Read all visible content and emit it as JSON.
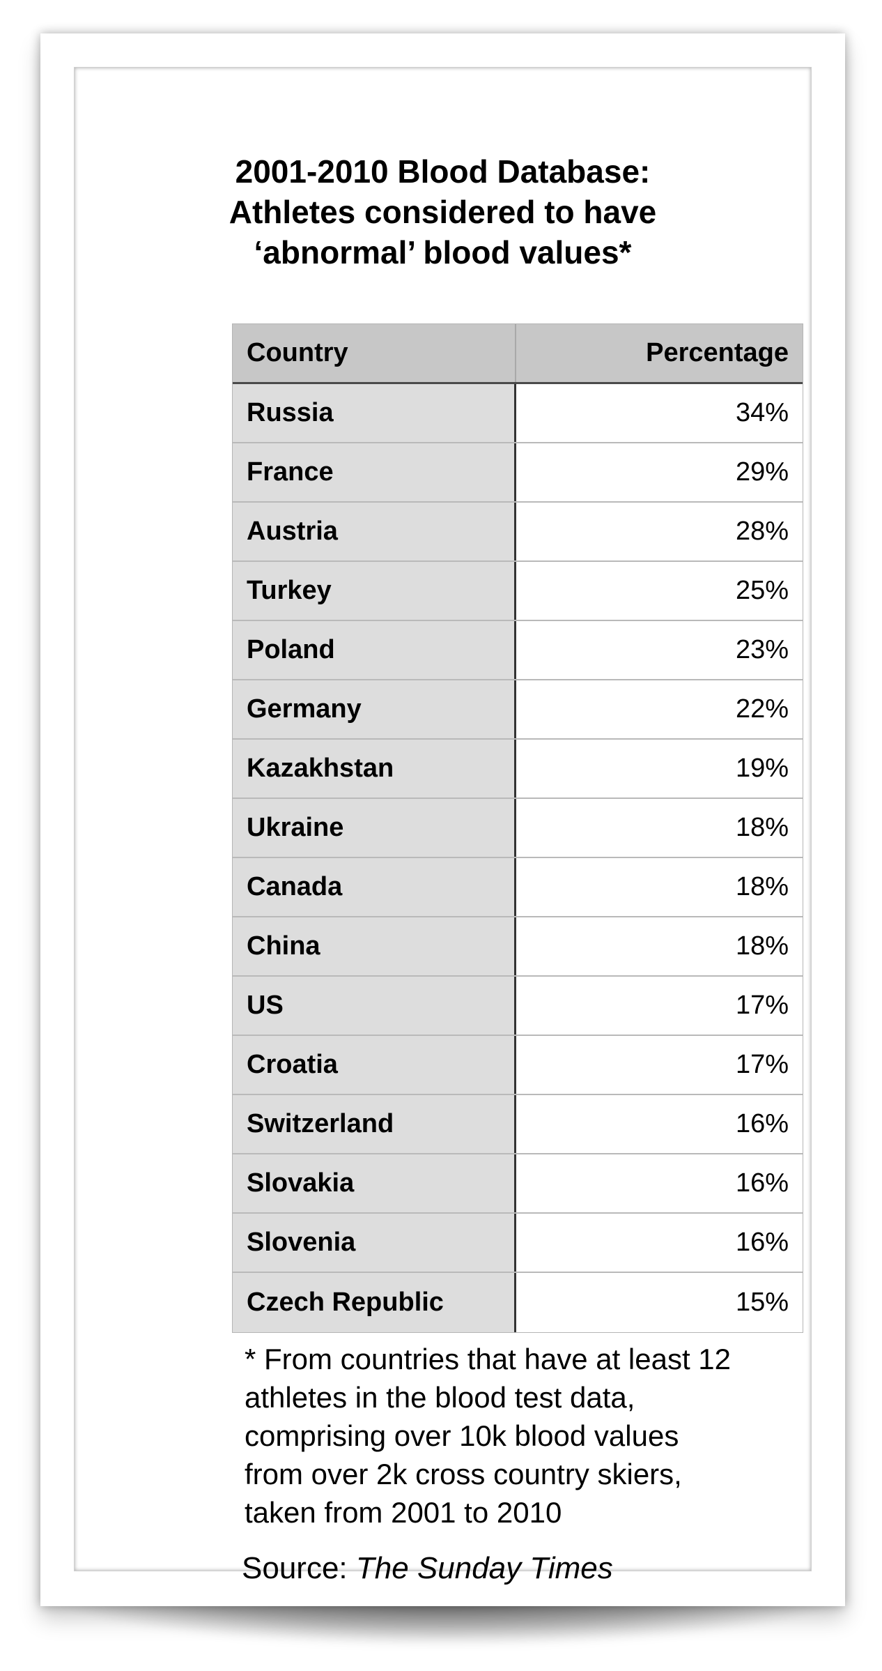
{
  "chart_data": {
    "type": "table",
    "title_lines": [
      "2001-2010 Blood Database:",
      "Athletes considered to have",
      "‘abnormal’ blood values*"
    ],
    "columns": [
      "Country",
      "Percentage"
    ],
    "rows": [
      {
        "country": "Russia",
        "percentage": "34%",
        "value": 34
      },
      {
        "country": "France",
        "percentage": "29%",
        "value": 29
      },
      {
        "country": "Austria",
        "percentage": "28%",
        "value": 28
      },
      {
        "country": "Turkey",
        "percentage": "25%",
        "value": 25
      },
      {
        "country": "Poland",
        "percentage": "23%",
        "value": 23
      },
      {
        "country": "Germany",
        "percentage": "22%",
        "value": 22
      },
      {
        "country": "Kazakhstan",
        "percentage": "19%",
        "value": 19
      },
      {
        "country": "Ukraine",
        "percentage": "18%",
        "value": 18
      },
      {
        "country": "Canada",
        "percentage": "18%",
        "value": 18
      },
      {
        "country": "China",
        "percentage": "18%",
        "value": 18
      },
      {
        "country": "US",
        "percentage": "17%",
        "value": 17
      },
      {
        "country": "Croatia",
        "percentage": "17%",
        "value": 17
      },
      {
        "country": "Switzerland",
        "percentage": "16%",
        "value": 16
      },
      {
        "country": "Slovakia",
        "percentage": "16%",
        "value": 16
      },
      {
        "country": "Slovenia",
        "percentage": "16%",
        "value": 16
      },
      {
        "country": "Czech Republic",
        "percentage": "15%",
        "value": 15
      }
    ],
    "footnote_lines": [
      "* From countries that have at least 12",
      "athletes in the blood test data,",
      "comprising over 10k blood values",
      "from over 2k cross country skiers,",
      "taken from 2001 to 2010"
    ],
    "source_label": "Source: ",
    "source_name": "The Sunday Times"
  },
  "colors": {
    "header_background": "#c7c7c7",
    "country_column_background": "#dddddd",
    "value_column_background": "#ffffff",
    "divider": "#333333"
  }
}
